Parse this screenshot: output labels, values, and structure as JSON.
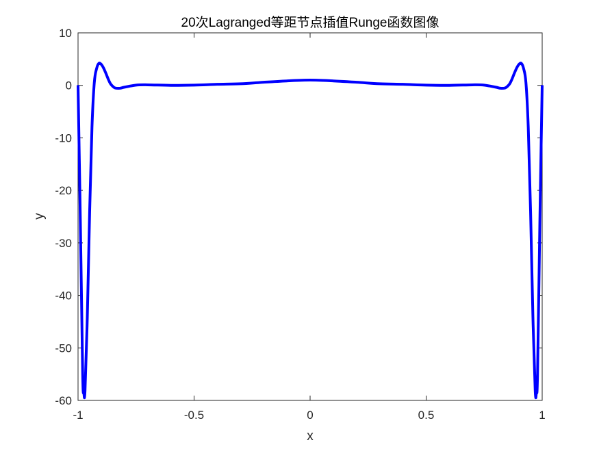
{
  "chart_data": {
    "type": "line",
    "title": "20次Lagranged等距节点插值Runge函数图像",
    "xlabel": "x",
    "ylabel": "y",
    "xlim": [
      -1,
      1
    ],
    "ylim": [
      -60,
      10
    ],
    "xticks": [
      -1,
      -0.5,
      0,
      0.5,
      1
    ],
    "xtick_labels": [
      "-1",
      "-0.5",
      "0",
      "0.5",
      "1"
    ],
    "yticks": [
      10,
      0,
      -10,
      -20,
      -30,
      -40,
      -50,
      -60
    ],
    "ytick_labels": [
      "10",
      "0",
      "-10",
      "-20",
      "-30",
      "-40",
      "-50",
      "-60"
    ],
    "grid": false,
    "box": true,
    "series": [
      {
        "color": "#0000ff",
        "x": [
          -1.0,
          -0.99,
          -0.98,
          -0.975,
          -0.97,
          -0.96,
          -0.95,
          -0.94,
          -0.93,
          -0.92,
          -0.91,
          -0.9,
          -0.89,
          -0.88,
          -0.87,
          -0.86,
          -0.85,
          -0.84,
          -0.82,
          -0.8,
          -0.75,
          -0.7,
          -0.6,
          -0.5,
          -0.4,
          -0.3,
          -0.2,
          -0.1,
          0.0,
          0.1,
          0.2,
          0.3,
          0.4,
          0.5,
          0.6,
          0.7,
          0.75,
          0.8,
          0.82,
          0.84,
          0.85,
          0.86,
          0.87,
          0.88,
          0.89,
          0.9,
          0.91,
          0.92,
          0.93,
          0.94,
          0.95,
          0.96,
          0.97,
          0.975,
          0.98,
          0.99,
          1.0
        ],
        "y": [
          0.04,
          -26,
          -55,
          -58.5,
          -58.2,
          -44,
          -24,
          -8,
          0.5,
          3.2,
          4.2,
          4.0,
          3.3,
          2.3,
          1.2,
          0.3,
          -0.2,
          -0.5,
          -0.55,
          -0.35,
          0.05,
          0.1,
          0.0,
          0.05,
          0.2,
          0.3,
          0.6,
          0.85,
          1.0,
          0.85,
          0.6,
          0.3,
          0.2,
          0.05,
          0.0,
          0.1,
          0.05,
          -0.35,
          -0.55,
          -0.5,
          -0.2,
          0.3,
          1.2,
          2.3,
          3.3,
          4.0,
          4.2,
          3.2,
          0.5,
          -8,
          -24,
          -44,
          -58.2,
          -58.5,
          -55,
          -26,
          0.04
        ]
      }
    ]
  }
}
